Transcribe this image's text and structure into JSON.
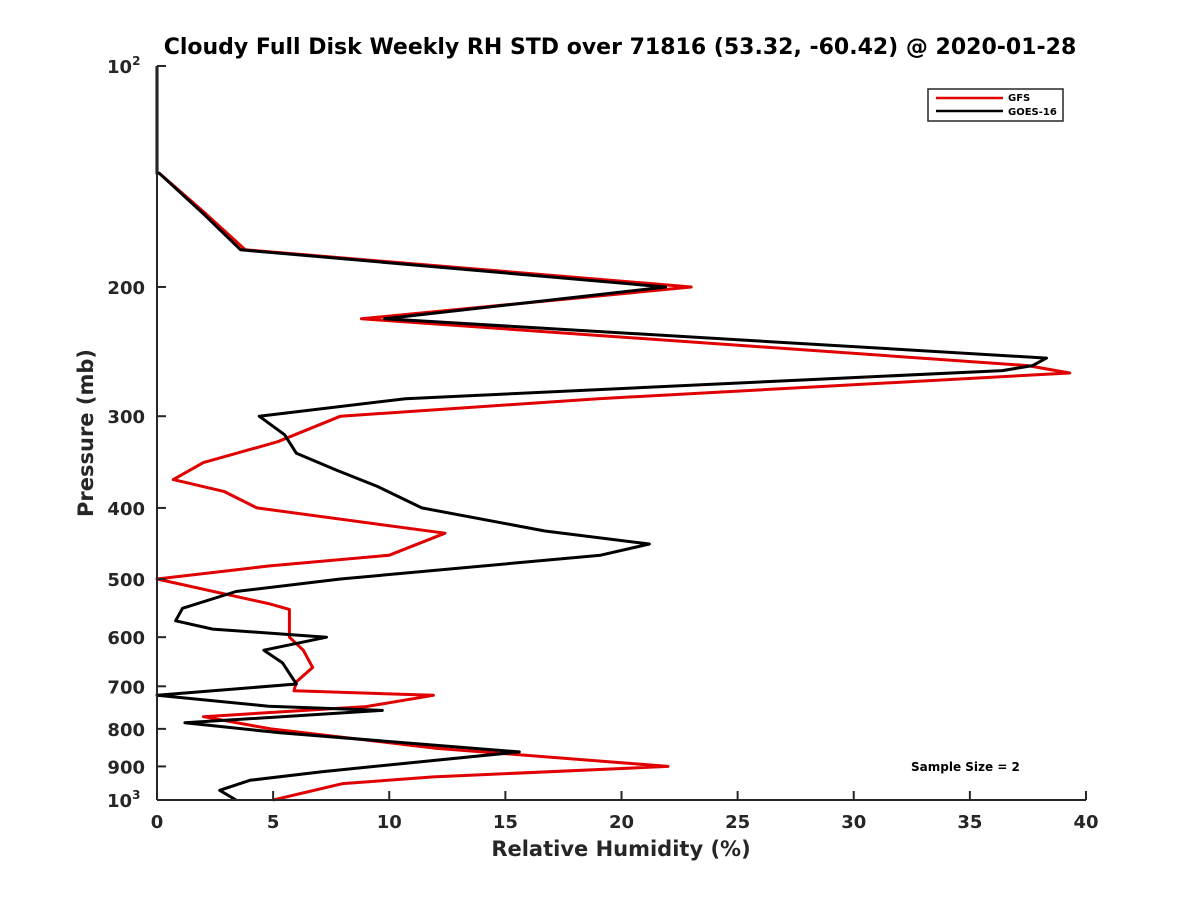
{
  "chart_data": {
    "type": "line",
    "title": "Cloudy Full Disk Weekly RH STD over 71816 (53.32, -60.42) @ 2020-01-28",
    "xlabel": "Relative Humidity (%)",
    "ylabel": "Pressure (mb)",
    "xlim": [
      0,
      40
    ],
    "ylim": [
      100,
      1000
    ],
    "y_scale": "log",
    "y_reversed": true,
    "x_ticks": [
      0,
      5,
      10,
      15,
      20,
      25,
      30,
      35,
      40
    ],
    "y_ticks": [
      {
        "value": 100,
        "base": "10",
        "exp": "2"
      },
      {
        "value": 200,
        "label": "200"
      },
      {
        "value": 300,
        "label": "300"
      },
      {
        "value": 400,
        "label": "400"
      },
      {
        "value": 500,
        "label": "500"
      },
      {
        "value": 600,
        "label": "600"
      },
      {
        "value": 700,
        "label": "700"
      },
      {
        "value": 800,
        "label": "800"
      },
      {
        "value": 900,
        "label": "900"
      },
      {
        "value": 1000,
        "base": "10",
        "exp": "3"
      }
    ],
    "grid": false,
    "legend_position": "top-right",
    "series": [
      {
        "name": "GFS",
        "color": "#e00000",
        "points": [
          [
            0.0,
            100
          ],
          [
            0.0,
            140
          ],
          [
            0.1,
            140
          ],
          [
            2.1,
            159
          ],
          [
            3.8,
            178
          ],
          [
            23.0,
            200
          ],
          [
            8.8,
            221
          ],
          [
            37.5,
            256
          ],
          [
            39.3,
            262
          ],
          [
            19.0,
            284
          ],
          [
            7.9,
            300
          ],
          [
            5.2,
            325
          ],
          [
            2.0,
            347
          ],
          [
            0.7,
            366
          ],
          [
            2.9,
            380
          ],
          [
            4.3,
            400
          ],
          [
            12.4,
            433
          ],
          [
            10.0,
            464
          ],
          [
            4.8,
            480
          ],
          [
            0.0,
            500
          ],
          [
            4.8,
            540
          ],
          [
            5.7,
            550
          ],
          [
            5.7,
            600
          ],
          [
            6.3,
            625
          ],
          [
            6.7,
            660
          ],
          [
            6.0,
            690
          ],
          [
            5.9,
            710
          ],
          [
            11.9,
            720
          ],
          [
            9.0,
            746
          ],
          [
            2.0,
            770
          ],
          [
            4.9,
            800
          ],
          [
            12.0,
            850
          ],
          [
            22.0,
            900
          ],
          [
            11.9,
            930
          ],
          [
            8.0,
            950
          ],
          [
            5.0,
            1000
          ]
        ]
      },
      {
        "name": "GOES-16",
        "color": "#000000",
        "points": [
          [
            0.0,
            100
          ],
          [
            0.0,
            140
          ],
          [
            0.1,
            140
          ],
          [
            2.0,
            159
          ],
          [
            3.6,
            178
          ],
          [
            21.9,
            200
          ],
          [
            9.8,
            221
          ],
          [
            38.3,
            250
          ],
          [
            37.7,
            256
          ],
          [
            36.4,
            260
          ],
          [
            10.7,
            284
          ],
          [
            4.4,
            300
          ],
          [
            5.5,
            318
          ],
          [
            6.0,
            337
          ],
          [
            7.7,
            355
          ],
          [
            9.5,
            374
          ],
          [
            11.4,
            400
          ],
          [
            16.7,
            430
          ],
          [
            21.2,
            448
          ],
          [
            19.1,
            464
          ],
          [
            7.9,
            500
          ],
          [
            3.4,
            520
          ],
          [
            1.1,
            548
          ],
          [
            0.8,
            570
          ],
          [
            2.4,
            585
          ],
          [
            7.3,
            600
          ],
          [
            4.6,
            625
          ],
          [
            5.4,
            650
          ],
          [
            6.0,
            695
          ],
          [
            0.0,
            720
          ],
          [
            4.8,
            745
          ],
          [
            9.7,
            755
          ],
          [
            1.2,
            785
          ],
          [
            5.3,
            810
          ],
          [
            15.6,
            860
          ],
          [
            7.1,
            915
          ],
          [
            4.0,
            940
          ],
          [
            2.7,
            970
          ],
          [
            3.4,
            1000
          ]
        ]
      }
    ],
    "annotation": "Sample Size = 2"
  }
}
